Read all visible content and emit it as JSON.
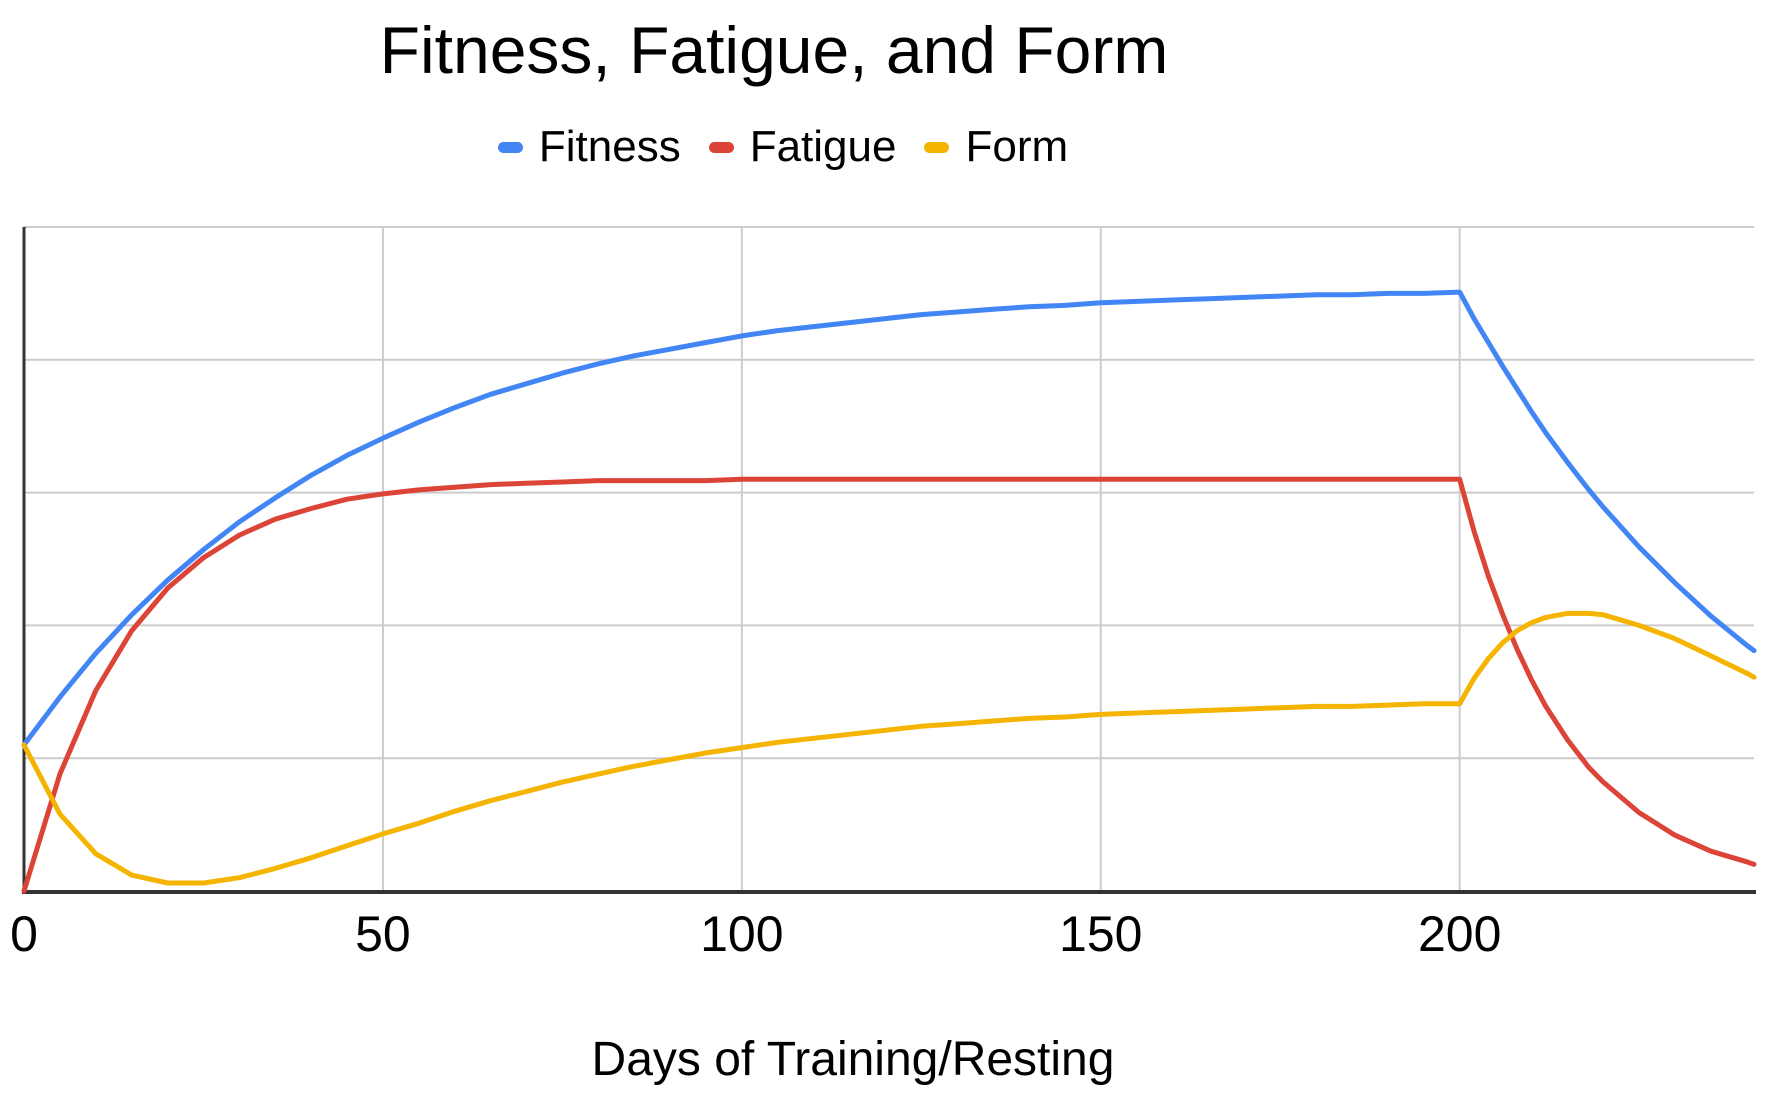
{
  "chart_data": {
    "type": "line",
    "title": "Fitness, Fatigue, and Form",
    "xlabel": "Days of Training/Resting",
    "ylabel": "",
    "x_ticks": [
      0,
      50,
      100,
      150,
      200
    ],
    "xlim": [
      0,
      241
    ],
    "ylim": [
      0,
      5
    ],
    "grid": true,
    "legend_position": "top",
    "background_color": "#ffffff",
    "gridline_color": "#cccccc",
    "axis_color": "#333333",
    "label_color": "#000000",
    "x": [
      0,
      5,
      10,
      15,
      20,
      25,
      30,
      35,
      40,
      45,
      50,
      55,
      60,
      65,
      70,
      75,
      80,
      85,
      90,
      95,
      100,
      105,
      110,
      115,
      120,
      125,
      130,
      135,
      140,
      145,
      150,
      155,
      160,
      165,
      170,
      175,
      180,
      185,
      190,
      195,
      200,
      202,
      204,
      206,
      208,
      210,
      212,
      215,
      216,
      218,
      220,
      225,
      230,
      235,
      240,
      241
    ],
    "series": [
      {
        "name": "Fitness",
        "color": "#4285f4",
        "values": [
          1.1,
          1.46,
          1.79,
          2.08,
          2.34,
          2.57,
          2.78,
          2.96,
          3.13,
          3.28,
          3.41,
          3.53,
          3.64,
          3.74,
          3.82,
          3.9,
          3.97,
          4.03,
          4.08,
          4.13,
          4.18,
          4.22,
          4.25,
          4.28,
          4.31,
          4.34,
          4.36,
          4.38,
          4.4,
          4.41,
          4.43,
          4.44,
          4.45,
          4.46,
          4.47,
          4.48,
          4.49,
          4.49,
          4.5,
          4.5,
          4.51,
          4.31,
          4.13,
          3.95,
          3.78,
          3.61,
          3.45,
          3.23,
          3.16,
          3.02,
          2.89,
          2.59,
          2.32,
          2.07,
          1.85,
          1.81
        ]
      },
      {
        "name": "Fatigue",
        "color": "#db4437",
        "values": [
          0.0,
          0.88,
          1.51,
          1.96,
          2.28,
          2.51,
          2.68,
          2.8,
          2.88,
          2.95,
          2.99,
          3.02,
          3.04,
          3.06,
          3.07,
          3.08,
          3.09,
          3.09,
          3.09,
          3.09,
          3.1,
          3.1,
          3.1,
          3.1,
          3.1,
          3.1,
          3.1,
          3.1,
          3.1,
          3.1,
          3.1,
          3.1,
          3.1,
          3.1,
          3.1,
          3.1,
          3.1,
          3.1,
          3.1,
          3.1,
          3.1,
          2.71,
          2.37,
          2.08,
          1.82,
          1.59,
          1.39,
          1.14,
          1.07,
          0.93,
          0.82,
          0.59,
          0.42,
          0.3,
          0.22,
          0.2
        ]
      },
      {
        "name": "Form",
        "color": "#f4b400",
        "values": [
          1.1,
          0.58,
          0.28,
          0.12,
          0.06,
          0.06,
          0.1,
          0.17,
          0.25,
          0.34,
          0.43,
          0.51,
          0.6,
          0.68,
          0.75,
          0.82,
          0.88,
          0.94,
          0.99,
          1.04,
          1.08,
          1.12,
          1.15,
          1.18,
          1.21,
          1.24,
          1.26,
          1.28,
          1.3,
          1.31,
          1.33,
          1.34,
          1.35,
          1.36,
          1.37,
          1.38,
          1.39,
          1.39,
          1.4,
          1.41,
          1.41,
          1.6,
          1.75,
          1.87,
          1.96,
          2.02,
          2.06,
          2.09,
          2.09,
          2.09,
          2.08,
          2.0,
          1.9,
          1.77,
          1.64,
          1.61
        ]
      }
    ]
  }
}
